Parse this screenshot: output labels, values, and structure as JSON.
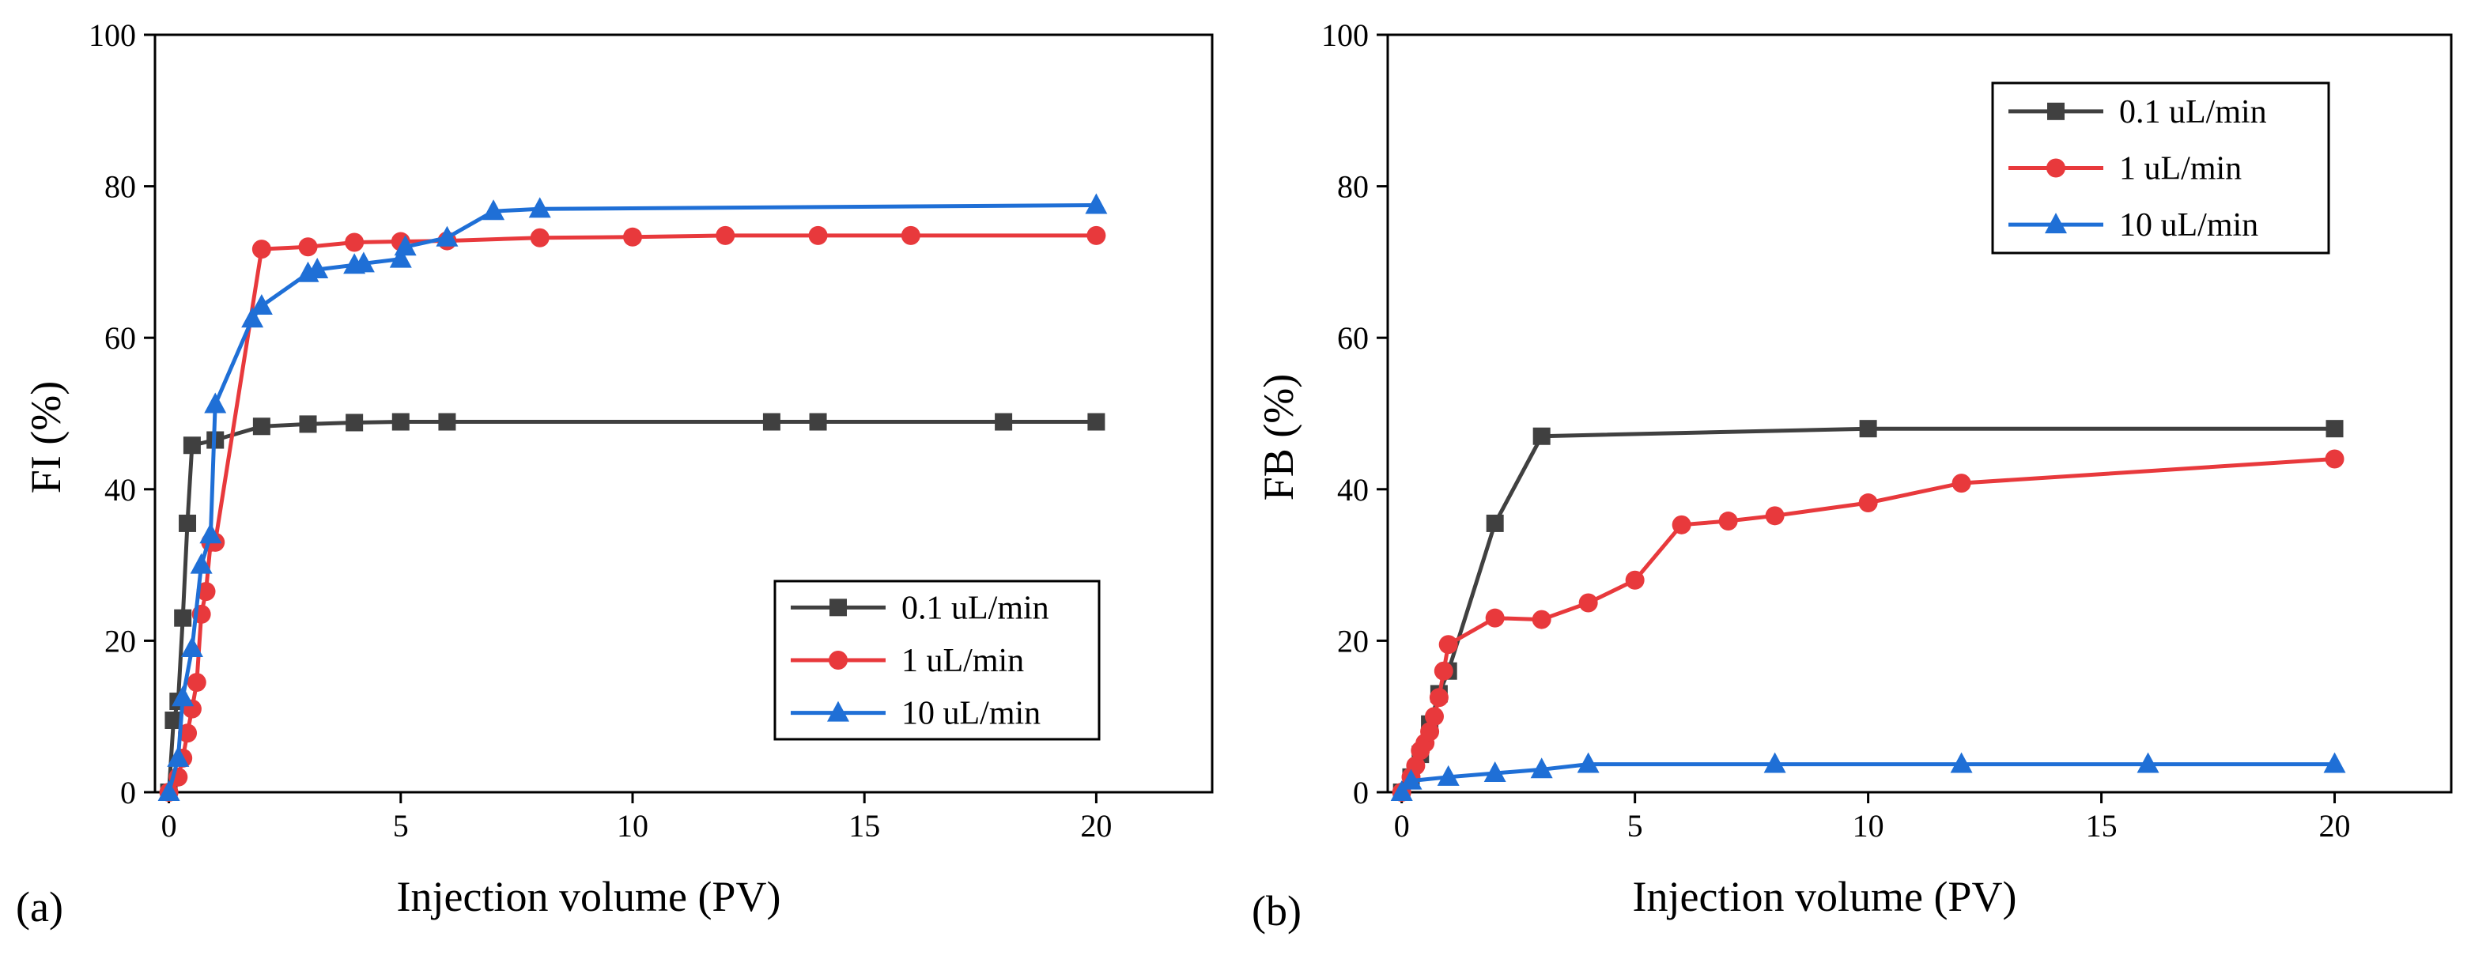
{
  "panel_labels": [
    "(a)",
    "(b)"
  ],
  "chart_data": [
    {
      "type": "line",
      "panel": "(a)",
      "title": "",
      "xlabel": "Injection volume (PV)",
      "ylabel": "FI (%)",
      "xlim": [
        -0.3,
        22.5
      ],
      "ylim": [
        0,
        100
      ],
      "xticks": [
        0,
        5,
        10,
        15,
        20
      ],
      "yticks": [
        0,
        20,
        40,
        60,
        80,
        100
      ],
      "grid": false,
      "legend_position": "bottom-right",
      "series": [
        {
          "name": "0.1 uL/min",
          "color": "#404040",
          "marker": "square",
          "x": [
            0,
            0.1,
            0.2,
            0.3,
            0.4,
            0.5,
            1,
            2,
            3,
            4,
            5,
            6,
            13,
            14,
            18,
            20
          ],
          "y": [
            0,
            9.5,
            12,
            23,
            35.5,
            45.8,
            46.5,
            48.3,
            48.6,
            48.8,
            48.9,
            48.9,
            48.9,
            48.9,
            48.9,
            48.9
          ]
        },
        {
          "name": "1 uL/min",
          "color": "#e8393c",
          "marker": "circle",
          "x": [
            0,
            0.2,
            0.3,
            0.4,
            0.5,
            0.6,
            0.7,
            0.8,
            0.9,
            1,
            2,
            3,
            4,
            5,
            6,
            8,
            10,
            12,
            14,
            16,
            20
          ],
          "y": [
            0,
            2,
            4.5,
            7.8,
            11,
            14.5,
            23.5,
            26.5,
            33,
            33,
            71.7,
            72,
            72.6,
            72.7,
            72.8,
            73.2,
            73.3,
            73.5,
            73.5,
            73.5,
            73.5
          ]
        },
        {
          "name": "10 uL/min",
          "color": "#1f6fd6",
          "marker": "triangle",
          "x": [
            0,
            0.2,
            0.3,
            0.5,
            0.7,
            0.9,
            1,
            1.8,
            2,
            3,
            3.2,
            4,
            4.2,
            5,
            5.1,
            6,
            7,
            8,
            20
          ],
          "y": [
            0,
            4.5,
            12.5,
            19,
            30,
            34,
            51.2,
            62.5,
            64.2,
            68.5,
            69,
            69.6,
            69.8,
            70.4,
            72,
            73.2,
            76.7,
            77,
            77.5
          ]
        }
      ]
    },
    {
      "type": "line",
      "panel": "(b)",
      "title": "",
      "xlabel": "Injection volume (PV)",
      "ylabel": "FB (%)",
      "xlim": [
        -0.3,
        22.5
      ],
      "ylim": [
        0,
        100
      ],
      "xticks": [
        0,
        5,
        10,
        15,
        20
      ],
      "yticks": [
        0,
        20,
        40,
        60,
        80,
        100
      ],
      "grid": false,
      "legend_position": "top-right",
      "series": [
        {
          "name": "0.1 uL/min",
          "color": "#404040",
          "marker": "square",
          "x": [
            0,
            0.2,
            0.4,
            0.6,
            0.8,
            1,
            2,
            3,
            10,
            20
          ],
          "y": [
            0,
            2,
            5,
            9,
            13,
            16,
            35.5,
            47,
            48,
            48
          ]
        },
        {
          "name": "1 uL/min",
          "color": "#e8393c",
          "marker": "circle",
          "x": [
            0,
            0.2,
            0.3,
            0.4,
            0.5,
            0.6,
            0.7,
            0.8,
            0.9,
            1,
            2,
            3,
            4,
            5,
            6,
            7,
            8,
            10,
            12,
            20
          ],
          "y": [
            0,
            2,
            3.5,
            5.5,
            6.5,
            8,
            10,
            12.5,
            16,
            19.5,
            23,
            22.8,
            25,
            28,
            35.3,
            35.8,
            36.5,
            38.2,
            40.8,
            44
          ]
        },
        {
          "name": "10 uL/min",
          "color": "#1f6fd6",
          "marker": "triangle",
          "x": [
            0,
            0.2,
            1,
            2,
            3,
            4,
            8,
            12,
            16,
            20
          ],
          "y": [
            0,
            1.5,
            2,
            2.5,
            3,
            3.7,
            3.7,
            3.7,
            3.7,
            3.7
          ]
        }
      ]
    }
  ]
}
